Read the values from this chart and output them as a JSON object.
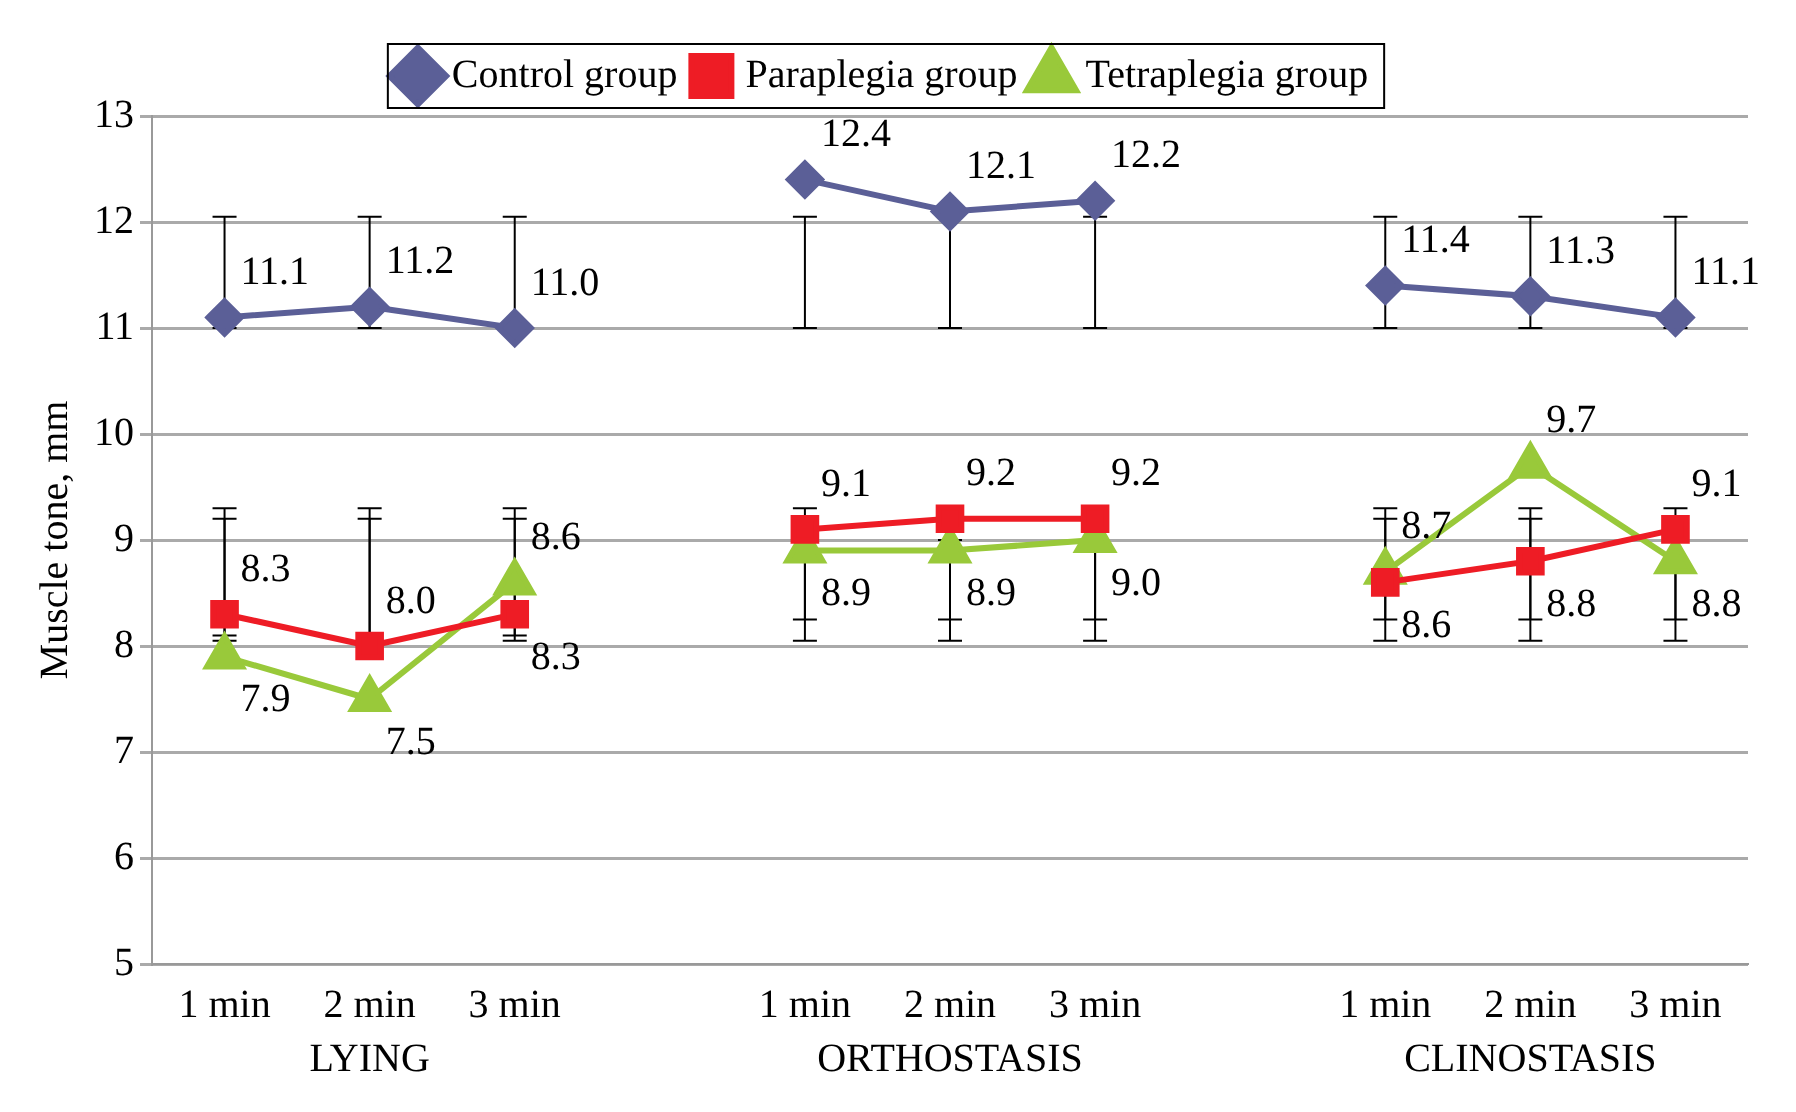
{
  "chart_data": {
    "type": "line",
    "ylabel": "Muscle tone, mm",
    "categories": [
      "1 min",
      "2 min",
      "3 min",
      null,
      "1 min",
      "2 min",
      "3 min",
      null,
      "1 min",
      "2 min",
      "3 min"
    ],
    "series": [
      {
        "name": "Control group",
        "color": "#5b5f97",
        "marker": "diamond",
        "values": [
          11.1,
          11.2,
          11.0,
          null,
          12.4,
          12.1,
          12.2,
          null,
          11.4,
          11.3,
          11.1
        ],
        "value_labels": [
          "11.1",
          "11.2",
          "11.0",
          null,
          "12.4",
          "12.1",
          "12.2",
          null,
          "11.4",
          "11.3",
          "11.1"
        ],
        "errors": [
          [
            11.0,
            12.05
          ],
          [
            11.0,
            12.05
          ],
          [
            11.0,
            12.05
          ],
          null,
          [
            11.0,
            12.05
          ],
          [
            11.0,
            12.1
          ],
          [
            11.0,
            12.05
          ],
          null,
          [
            11.0,
            12.05
          ],
          [
            11.0,
            12.05
          ],
          [
            11.0,
            12.05
          ]
        ]
      },
      {
        "name": "Paraplegia group",
        "color": "#ee1c25",
        "marker": "square",
        "values": [
          8.3,
          8.0,
          8.3,
          null,
          9.1,
          9.2,
          9.2,
          null,
          8.6,
          8.8,
          9.1
        ],
        "value_labels": [
          "8.3",
          "8.0",
          "8.3",
          null,
          "9.1",
          "9.2",
          "9.2",
          null,
          "8.6",
          "8.8",
          "9.1"
        ],
        "errors": [
          [
            8.05,
            9.3
          ],
          [
            8.0,
            9.3
          ],
          [
            8.05,
            9.3
          ],
          null,
          [
            8.05,
            9.3
          ],
          [
            8.05,
            9.2
          ],
          [
            8.05,
            9.2
          ],
          null,
          [
            8.05,
            9.3
          ],
          [
            8.05,
            9.3
          ],
          [
            8.05,
            9.3
          ]
        ]
      },
      {
        "name": "Tetraplegia group",
        "color": "#99c93a",
        "marker": "triangle",
        "values": [
          7.9,
          7.5,
          8.6,
          null,
          8.9,
          8.9,
          9.0,
          null,
          8.7,
          9.7,
          8.8
        ],
        "value_labels": [
          "7.9",
          "7.5",
          "8.6",
          null,
          "8.9",
          "8.9",
          "9.0",
          null,
          "8.7",
          "9.7",
          "8.8"
        ],
        "errors": [
          [
            8.1,
            9.2
          ],
          [
            8.1,
            9.2
          ],
          [
            8.1,
            9.2
          ],
          null,
          [
            8.25,
            9.0
          ],
          [
            8.25,
            9.0
          ],
          [
            8.25,
            9.3
          ],
          null,
          [
            8.25,
            9.2
          ],
          [
            8.25,
            9.2
          ],
          [
            8.25,
            9.2
          ]
        ]
      }
    ],
    "ylim": [
      5,
      13
    ],
    "yticks": [
      5,
      6,
      7,
      8,
      9,
      10,
      11,
      12,
      13
    ],
    "grid": "y",
    "legend": "top",
    "annotations": [
      "LYING",
      "ORTHOSTASIS",
      "CLINOSTASIS"
    ]
  }
}
